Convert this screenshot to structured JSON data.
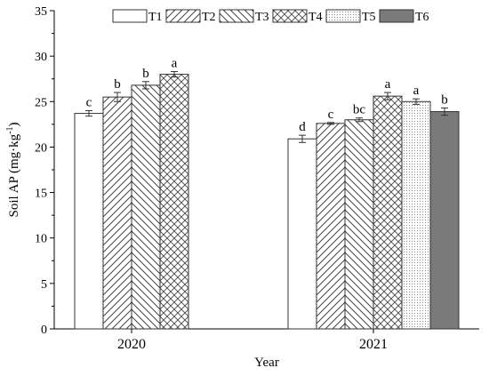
{
  "chart_data": {
    "type": "bar",
    "xlabel": "Year",
    "ylabel_main": "Soil AP (mg·kg",
    "ylabel_sup": "-1",
    "ylabel_close": ")",
    "ylim": [
      0,
      35
    ],
    "yticks": [
      "0",
      "5",
      "10",
      "15",
      "20",
      "25",
      "30",
      "35"
    ],
    "grid": false,
    "legend_placement": "top",
    "categories": [
      "2020",
      "2021"
    ],
    "series": [
      {
        "name": "T1",
        "pattern": "white",
        "values": [
          23.7,
          20.9
        ],
        "errors": [
          0.3,
          0.4
        ],
        "labels": [
          "c",
          "d"
        ]
      },
      {
        "name": "T2",
        "pattern": "forward-diagonal",
        "values": [
          25.5,
          22.6
        ],
        "errors": [
          0.5,
          0.1
        ],
        "labels": [
          "b",
          "c"
        ]
      },
      {
        "name": "T3",
        "pattern": "back-diagonal",
        "values": [
          26.8,
          23.0
        ],
        "errors": [
          0.4,
          0.2
        ],
        "labels": [
          "b",
          "bc"
        ]
      },
      {
        "name": "T4",
        "pattern": "crosshatch",
        "values": [
          28.0,
          25.6
        ],
        "errors": [
          0.3,
          0.4
        ],
        "labels": [
          "a",
          "a"
        ]
      },
      {
        "name": "T5",
        "pattern": "dotted",
        "values": [
          null,
          25.0
        ],
        "errors": [
          null,
          0.3
        ],
        "labels": [
          null,
          "a"
        ]
      },
      {
        "name": "T6",
        "pattern": "dark-gray",
        "values": [
          null,
          23.9
        ],
        "errors": [
          null,
          0.4
        ],
        "labels": [
          null,
          "b"
        ]
      }
    ],
    "colors": {
      "axis": "#000000",
      "bar_stroke": "#333333",
      "dark_fill": "#7a7a7a",
      "hatch": "#444444"
    }
  }
}
